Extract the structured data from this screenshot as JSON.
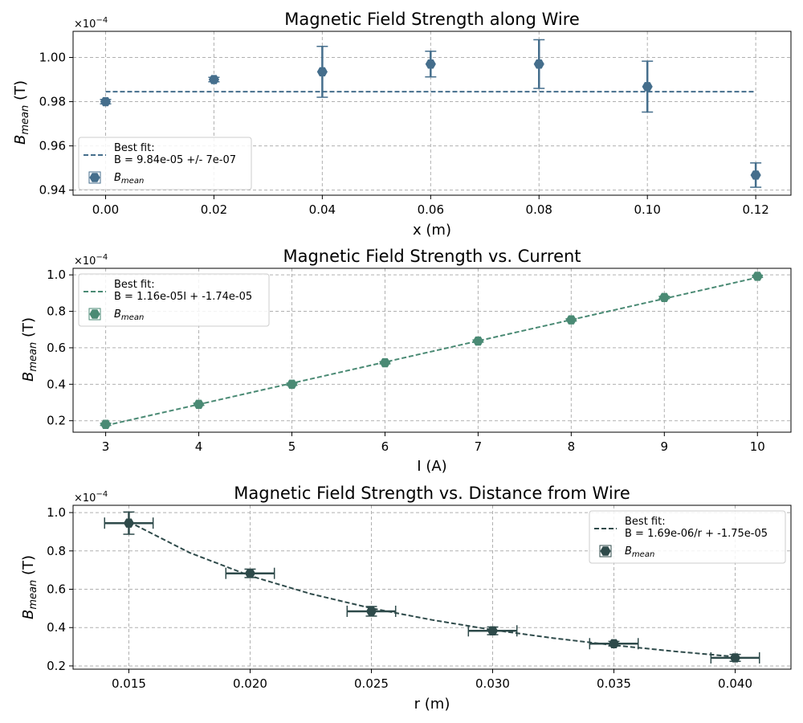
{
  "colors": {
    "panel1": "#456e8c",
    "panel2": "#4a8a74",
    "panel3": "#2e4a4a"
  },
  "chart_data": [
    {
      "type": "scatter",
      "title": "Magnetic Field Strength along Wire",
      "xlabel": "x (m)",
      "ylabel_main": "B",
      "ylabel_sub": "mean",
      "ylabel_unit": " (T)",
      "y_multiplier": "×10",
      "y_multiplier_exp": "−4",
      "xlim": [
        -0.006,
        0.1265
      ],
      "ylim": [
        0.9377,
        1.0118
      ],
      "xticks": [
        0.0,
        0.02,
        0.04,
        0.06,
        0.08,
        0.1,
        0.12
      ],
      "xtick_labels": [
        "0.00",
        "0.02",
        "0.04",
        "0.06",
        "0.08",
        "0.10",
        "0.12"
      ],
      "yticks": [
        0.94,
        0.96,
        0.98,
        1.0
      ],
      "ytick_labels": [
        "0.94",
        "0.96",
        "0.98",
        "1.00"
      ],
      "grid": true,
      "legend": "lower-left",
      "points": [
        {
          "x": 0.0,
          "y": 0.98,
          "yerr": 0.001
        },
        {
          "x": 0.02,
          "y": 0.99,
          "yerr": 0.001
        },
        {
          "x": 0.04,
          "y": 0.9935,
          "yerr": 0.0115
        },
        {
          "x": 0.06,
          "y": 0.997,
          "yerr": 0.0058
        },
        {
          "x": 0.08,
          "y": 0.997,
          "yerr": 0.011
        },
        {
          "x": 0.1,
          "y": 0.9868,
          "yerr": 0.0115
        },
        {
          "x": 0.12,
          "y": 0.9468,
          "yerr": 0.0055
        }
      ],
      "fit": {
        "x": [
          0.0,
          0.12
        ],
        "y": [
          0.9845,
          0.9845
        ]
      },
      "legend_fit_label_1": "Best fit:",
      "legend_fit_label_2": " B = 9.84e-05 +/- 7e-07",
      "legend_points_main": "B",
      "legend_points_sub": "mean"
    },
    {
      "type": "scatter",
      "title": "Magnetic Field Strength vs. Current",
      "xlabel": "I (A)",
      "ylabel_main": "B",
      "ylabel_sub": "mean",
      "ylabel_unit": " (T)",
      "y_multiplier": "×10",
      "y_multiplier_exp": "−4",
      "xlim": [
        2.65,
        10.36
      ],
      "ylim": [
        0.137,
        1.036
      ],
      "xticks": [
        3,
        4,
        5,
        6,
        7,
        8,
        9,
        10
      ],
      "xtick_labels": [
        "3",
        "4",
        "5",
        "6",
        "7",
        "8",
        "9",
        "10"
      ],
      "yticks": [
        0.2,
        0.4,
        0.6,
        0.8,
        1.0
      ],
      "ytick_labels": [
        "0.2",
        "0.4",
        "0.6",
        "0.8",
        "1.0"
      ],
      "grid": true,
      "legend": "upper-left",
      "points": [
        {
          "x": 3,
          "y": 0.18,
          "yerr": 0.006
        },
        {
          "x": 4,
          "y": 0.29,
          "yerr": 0.006
        },
        {
          "x": 5,
          "y": 0.4,
          "yerr": 0.006
        },
        {
          "x": 6,
          "y": 0.518,
          "yerr": 0.006
        },
        {
          "x": 7,
          "y": 0.637,
          "yerr": 0.006
        },
        {
          "x": 8,
          "y": 0.753,
          "yerr": 0.006
        },
        {
          "x": 9,
          "y": 0.876,
          "yerr": 0.006
        },
        {
          "x": 10,
          "y": 0.992,
          "yerr": 0.006
        }
      ],
      "fit": {
        "x": [
          3,
          10
        ],
        "y": [
          0.1736,
          0.9856
        ]
      },
      "legend_fit_label_1": "Best fit:",
      "legend_fit_label_2": " B = 1.16e-05I + -1.74e-05",
      "legend_points_main": "B",
      "legend_points_sub": "mean"
    },
    {
      "type": "scatter",
      "title": "Magnetic Field Strength vs. Distance from Wire",
      "xlabel": "r (m)",
      "ylabel_main": "B",
      "ylabel_sub": "mean",
      "ylabel_unit": " (T)",
      "y_multiplier": "×10",
      "y_multiplier_exp": "−4",
      "xlim": [
        0.0127,
        0.0423
      ],
      "ylim": [
        0.183,
        1.038
      ],
      "xticks": [
        0.015,
        0.02,
        0.025,
        0.03,
        0.035,
        0.04
      ],
      "xtick_labels": [
        "0.015",
        "0.020",
        "0.025",
        "0.030",
        "0.035",
        "0.040"
      ],
      "yticks": [
        0.2,
        0.4,
        0.6,
        0.8,
        1.0
      ],
      "ytick_labels": [
        "0.2",
        "0.4",
        "0.6",
        "0.8",
        "1.0"
      ],
      "grid": true,
      "legend": "upper-right",
      "points": [
        {
          "x": 0.015,
          "y": 0.945,
          "yerr": 0.058,
          "xerr": 0.001
        },
        {
          "x": 0.02,
          "y": 0.683,
          "yerr": 0.022,
          "xerr": 0.001
        },
        {
          "x": 0.025,
          "y": 0.485,
          "yerr": 0.025,
          "xerr": 0.001
        },
        {
          "x": 0.03,
          "y": 0.383,
          "yerr": 0.02,
          "xerr": 0.001
        },
        {
          "x": 0.035,
          "y": 0.316,
          "yerr": 0.012,
          "xerr": 0.001
        },
        {
          "x": 0.04,
          "y": 0.242,
          "yerr": 0.018,
          "xerr": 0.001
        }
      ],
      "fit": {
        "x": [
          0.015,
          0.0175,
          0.02,
          0.0225,
          0.025,
          0.0275,
          0.03,
          0.0325,
          0.035,
          0.0375,
          0.04
        ],
        "y": [
          0.952,
          0.791,
          0.67,
          0.576,
          0.501,
          0.44,
          0.388,
          0.345,
          0.308,
          0.276,
          0.248
        ]
      },
      "legend_fit_label_1": "Best fit:",
      "legend_fit_label_2": " B = 1.69e-06/r + -1.75e-05",
      "legend_points_main": "B",
      "legend_points_sub": "mean"
    }
  ]
}
